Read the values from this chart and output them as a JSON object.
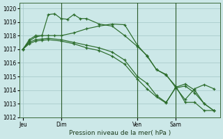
{
  "bg_color": "#cce8e8",
  "grid_color": "#aacccc",
  "line_color": "#2a6b2a",
  "x_ticks_labels": [
    "Jeu",
    "Dim",
    "Ven",
    "Sam"
  ],
  "x_ticks_pos": [
    0,
    12,
    36,
    48
  ],
  "vlines": [
    12,
    36,
    48
  ],
  "xlim": [
    -1,
    62
  ],
  "ylim": [
    1012,
    1020.4
  ],
  "yticks": [
    1012,
    1013,
    1014,
    1015,
    1016,
    1017,
    1018,
    1019,
    1020
  ],
  "xlabel": "Pression niveau de la mer( hPa )",
  "series": [
    {
      "x": [
        0,
        2,
        4,
        6,
        8,
        10,
        12,
        14,
        16,
        18,
        20,
        24,
        28,
        32,
        36,
        39,
        42,
        45,
        48,
        51,
        54,
        57,
        60
      ],
      "y": [
        1017.0,
        1017.7,
        1018.0,
        1018.0,
        1019.55,
        1019.6,
        1019.25,
        1019.2,
        1019.55,
        1019.25,
        1019.25,
        1018.85,
        1018.7,
        1018.0,
        1017.2,
        1016.55,
        1015.5,
        1015.1,
        1014.3,
        1013.1,
        1013.1,
        1012.5,
        1012.5
      ]
    },
    {
      "x": [
        0,
        2,
        4,
        6,
        8,
        10,
        12,
        16,
        20,
        24,
        28,
        32,
        36,
        39,
        42,
        45,
        48,
        51,
        54,
        57,
        60
      ],
      "y": [
        1017.0,
        1017.6,
        1017.9,
        1018.0,
        1018.0,
        1018.0,
        1018.0,
        1018.2,
        1018.5,
        1018.7,
        1018.85,
        1018.8,
        1017.3,
        1016.5,
        1015.5,
        1015.15,
        1014.2,
        1013.3,
        1014.1,
        1014.4,
        1014.1
      ]
    },
    {
      "x": [
        0,
        2,
        4,
        6,
        8,
        12,
        16,
        20,
        24,
        28,
        32,
        36,
        39,
        42,
        45,
        48,
        51,
        54,
        57,
        60
      ],
      "y": [
        1017.0,
        1017.5,
        1017.7,
        1017.75,
        1017.8,
        1017.7,
        1017.5,
        1017.3,
        1017.1,
        1016.8,
        1016.2,
        1015.0,
        1014.5,
        1013.6,
        1013.1,
        1014.15,
        1014.3,
        1013.8,
        1013.0,
        1012.5
      ]
    },
    {
      "x": [
        0,
        2,
        4,
        6,
        8,
        12,
        16,
        20,
        24,
        28,
        32,
        36,
        39,
        42,
        45,
        48,
        51,
        54,
        57,
        60
      ],
      "y": [
        1017.0,
        1017.4,
        1017.6,
        1017.65,
        1017.7,
        1017.6,
        1017.4,
        1017.1,
        1016.9,
        1016.5,
        1015.9,
        1014.8,
        1014.1,
        1013.5,
        1013.05,
        1014.2,
        1014.45,
        1014.0,
        1013.0,
        1012.5
      ]
    }
  ]
}
